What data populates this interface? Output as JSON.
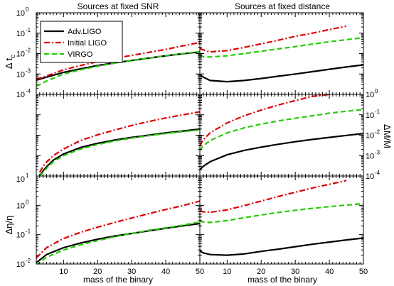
{
  "chart_data": {
    "type": "line",
    "titles": [
      "Sources at fixed SNR",
      "Sources at fixed distance"
    ],
    "xlabel": "mass of the binary",
    "xlim": [
      2,
      50
    ],
    "xticks": [
      10,
      20,
      30,
      40,
      50
    ],
    "legend": {
      "placement": "top-left",
      "entries": [
        "Adv.LIGO",
        "Initial LIGO",
        "VIRGO"
      ]
    },
    "series_styles": [
      {
        "name": "Adv.LIGO",
        "color": "#000000",
        "dash": "solid"
      },
      {
        "name": "Initial LIGO",
        "color": "#dd0000",
        "dash": "dashdot"
      },
      {
        "name": "VIRGO",
        "color": "#22cc00",
        "dash": "dashed"
      }
    ],
    "rows": [
      {
        "ylabel": "Δ t_c",
        "ylabel_main": "Δ t",
        "ylabel_sub": "c",
        "ylabel_side": "left",
        "ylim": [
          0.0001,
          1
        ],
        "yscale": "log",
        "tick_exponents": [
          -4,
          -3,
          -2,
          -1,
          0
        ],
        "tick_labels": [
          "10",
          "10",
          "10",
          "10",
          "10"
        ],
        "tick_exp_labels": [
          "-4",
          "-3",
          "-2",
          "-1",
          "0"
        ],
        "panels": [
          {
            "x": [
              2,
              5,
              10,
              15,
              20,
              25,
              30,
              35,
              40,
              45,
              50
            ],
            "series": [
              {
                "name": "Adv.LIGO",
                "values": [
                  0.0005,
                  0.0007,
                  0.0012,
                  0.0018,
                  0.0026,
                  0.0035,
                  0.0046,
                  0.006,
                  0.0078,
                  0.0098,
                  0.012
                ]
              },
              {
                "name": "Initial LIGO",
                "values": [
                  0.00055,
                  0.0008,
                  0.0016,
                  0.0026,
                  0.004,
                  0.0058,
                  0.0082,
                  0.0115,
                  0.016,
                  0.024,
                  0.035
                ]
              },
              {
                "name": "VIRGO",
                "values": [
                  0.00025,
                  0.00045,
                  0.001,
                  0.0016,
                  0.0024,
                  0.0034,
                  0.0045,
                  0.006,
                  0.008,
                  0.01,
                  0.0125
                ]
              }
            ]
          },
          {
            "x": [
              2,
              3,
              5,
              10,
              15,
              20,
              25,
              30,
              35,
              40,
              45,
              50
            ],
            "series": [
              {
                "name": "Adv.LIGO",
                "values": [
                  0.0009,
                  0.0007,
                  0.00048,
                  0.00042,
                  0.00048,
                  0.0006,
                  0.00078,
                  0.001,
                  0.0013,
                  0.0017,
                  0.0022,
                  0.0028
                ]
              },
              {
                "name": "Initial LIGO",
                "values": [
                  0.018,
                  0.015,
                  0.012,
                  0.014,
                  0.02,
                  0.03,
                  0.045,
                  0.07,
                  0.1,
                  0.15,
                  0.22,
                  null
                ]
              },
              {
                "name": "VIRGO",
                "values": [
                  0.0085,
                  0.007,
                  0.0068,
                  0.0078,
                  0.01,
                  0.013,
                  0.017,
                  0.022,
                  0.029,
                  0.038,
                  0.048,
                  0.06
                ]
              }
            ]
          }
        ]
      },
      {
        "ylabel": "ΔM/M",
        "ylabel_side": "right",
        "ylim": [
          0.0001,
          1
        ],
        "yscale": "log",
        "tick_exponents": [
          -4,
          -3,
          -2,
          -1,
          0
        ],
        "tick_labels": [
          "10",
          "10",
          "10",
          "10",
          "10"
        ],
        "tick_exp_labels": [
          "-4",
          "-3",
          "-2",
          "-1",
          "0"
        ],
        "panels": [
          {
            "x": [
              3,
              4,
              5,
              7,
              10,
              15,
              20,
              25,
              30,
              35,
              40,
              45,
              50
            ],
            "series": [
              {
                "name": "Adv.LIGO",
                "values": [
                  0.0001,
                  0.00018,
                  0.00028,
                  0.0006,
                  0.0012,
                  0.0025,
                  0.004,
                  0.0058,
                  0.0078,
                  0.01,
                  0.013,
                  0.016,
                  0.02
                ]
              },
              {
                "name": "Initial LIGO",
                "values": [
                  0.00015,
                  0.0003,
                  0.00048,
                  0.001,
                  0.0021,
                  0.0055,
                  0.0105,
                  0.018,
                  0.03,
                  0.047,
                  0.07,
                  0.1,
                  0.14
                ]
              },
              {
                "name": "VIRGO",
                "values": [
                  0.0001,
                  0.00015,
                  0.00024,
                  0.0005,
                  0.001,
                  0.0021,
                  0.0035,
                  0.0052,
                  0.0072,
                  0.0095,
                  0.012,
                  0.015,
                  0.018
                ]
              }
            ]
          },
          {
            "x": [
              2,
              3,
              5,
              10,
              15,
              20,
              25,
              30,
              35,
              40,
              45,
              50
            ],
            "series": [
              {
                "name": "Adv.LIGO",
                "values": [
                  0.0002,
                  0.0003,
                  0.0005,
                  0.0011,
                  0.0018,
                  0.0026,
                  0.0036,
                  0.0048,
                  0.0062,
                  0.0078,
                  0.0098,
                  0.012
                ]
              },
              {
                "name": "Initial LIGO",
                "values": [
                  0.003,
                  0.006,
                  0.013,
                  0.04,
                  0.09,
                  0.17,
                  0.3,
                  0.5,
                  0.8,
                  1.0,
                  null,
                  null
                ]
              },
              {
                "name": "VIRGO",
                "values": [
                  0.0018,
                  0.003,
                  0.0055,
                  0.013,
                  0.023,
                  0.035,
                  0.05,
                  0.068,
                  0.09,
                  0.12,
                  0.15,
                  0.18
                ]
              }
            ]
          }
        ]
      },
      {
        "ylabel": "Δη/η",
        "ylabel_side": "left",
        "ylim": [
          0.01,
          10
        ],
        "yscale": "log",
        "tick_exponents": [
          -2,
          -1,
          0,
          1
        ],
        "tick_labels": [
          "10",
          "10",
          "10",
          "10"
        ],
        "tick_exp_labels": [
          "-2",
          "-1",
          "0",
          "1"
        ],
        "panels": [
          {
            "x": [
              2,
              5,
              10,
              15,
              20,
              25,
              30,
              35,
              40,
              45,
              50
            ],
            "series": [
              {
                "name": "Adv.LIGO",
                "values": [
                  0.011,
                  0.021,
                  0.036,
                  0.052,
                  0.07,
                  0.09,
                  0.11,
                  0.135,
                  0.165,
                  0.2,
                  0.24
                ]
              },
              {
                "name": "Initial LIGO",
                "values": [
                  0.016,
                  0.036,
                  0.074,
                  0.12,
                  0.18,
                  0.26,
                  0.37,
                  0.52,
                  0.72,
                  0.98,
                  1.4
                ]
              },
              {
                "name": "VIRGO",
                "values": [
                  0.009,
                  0.017,
                  0.03,
                  0.045,
                  0.063,
                  0.085,
                  0.11,
                  0.14,
                  0.17,
                  0.21,
                  0.27
                ]
              }
            ]
          },
          {
            "x": [
              2,
              3,
              5,
              10,
              15,
              20,
              25,
              30,
              35,
              40,
              45,
              50
            ],
            "series": [
              {
                "name": "Adv.LIGO",
                "values": [
                  0.028,
                  0.024,
                  0.021,
                  0.02,
                  0.022,
                  0.027,
                  0.032,
                  0.039,
                  0.047,
                  0.056,
                  0.066,
                  0.077
                ]
              },
              {
                "name": "Initial LIGO",
                "values": [
                  0.65,
                  0.6,
                  0.58,
                  0.7,
                  0.98,
                  1.4,
                  2.0,
                  2.8,
                  3.9,
                  5.2,
                  7.0,
                  null
                ]
              },
              {
                "name": "VIRGO",
                "values": [
                  0.3,
                  0.27,
                  0.26,
                  0.3,
                  0.38,
                  0.47,
                  0.57,
                  0.68,
                  0.79,
                  0.9,
                  1.02,
                  1.15
                ]
              }
            ]
          }
        ]
      }
    ]
  }
}
